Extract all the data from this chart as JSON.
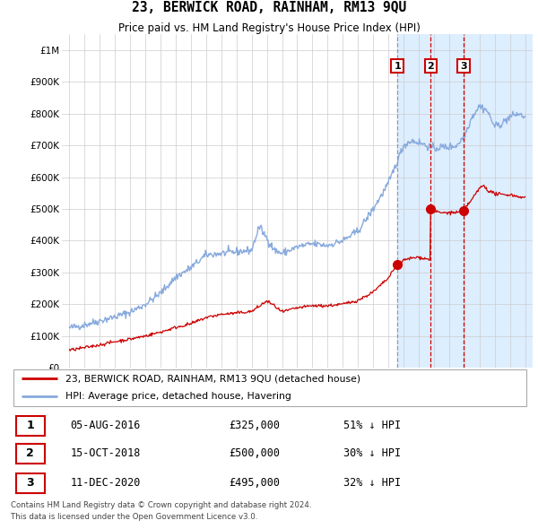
{
  "title": "23, BERWICK ROAD, RAINHAM, RM13 9QU",
  "subtitle": "Price paid vs. HM Land Registry's House Price Index (HPI)",
  "footer": "Contains HM Land Registry data © Crown copyright and database right 2024.\nThis data is licensed under the Open Government Licence v3.0.",
  "legend_red": "23, BERWICK ROAD, RAINHAM, RM13 9QU (detached house)",
  "legend_blue": "HPI: Average price, detached house, Havering",
  "transactions": [
    {
      "label": "1",
      "date": "05-AUG-2016",
      "price": 325000,
      "hpi_pct": "51% ↓ HPI",
      "x": 2016.59
    },
    {
      "label": "2",
      "date": "15-OCT-2018",
      "price": 500000,
      "hpi_pct": "30% ↓ HPI",
      "x": 2018.79
    },
    {
      "label": "3",
      "date": "11-DEC-2020",
      "price": 495000,
      "hpi_pct": "32% ↓ HPI",
      "x": 2020.95
    }
  ],
  "vline1_x": 2016.59,
  "vline2_x": 2018.79,
  "vline3_x": 2020.95,
  "shade_start": 2016.59,
  "shade_end": 2025.5,
  "red_color": "#cc0000",
  "blue_color": "#88aadd",
  "shade_color": "#ddeeff",
  "grid_color": "#cccccc",
  "ylim": [
    0,
    1050000
  ],
  "xlim": [
    1994.5,
    2025.5
  ],
  "hpi_anchors": [
    [
      1995.0,
      125000
    ],
    [
      1996.0,
      135000
    ],
    [
      1997.0,
      148000
    ],
    [
      1998.0,
      160000
    ],
    [
      1999.0,
      175000
    ],
    [
      2000.0,
      200000
    ],
    [
      2001.0,
      235000
    ],
    [
      2002.0,
      285000
    ],
    [
      2003.0,
      315000
    ],
    [
      2004.0,
      355000
    ],
    [
      2005.0,
      360000
    ],
    [
      2006.0,
      365000
    ],
    [
      2007.0,
      370000
    ],
    [
      2007.5,
      445000
    ],
    [
      2008.5,
      370000
    ],
    [
      2009.0,
      360000
    ],
    [
      2010.0,
      380000
    ],
    [
      2011.0,
      390000
    ],
    [
      2012.0,
      385000
    ],
    [
      2013.0,
      400000
    ],
    [
      2014.0,
      430000
    ],
    [
      2015.0,
      500000
    ],
    [
      2016.0,
      580000
    ],
    [
      2016.5,
      640000
    ],
    [
      2017.0,
      700000
    ],
    [
      2017.5,
      715000
    ],
    [
      2018.0,
      710000
    ],
    [
      2018.5,
      700000
    ],
    [
      2019.0,
      690000
    ],
    [
      2019.5,
      695000
    ],
    [
      2020.0,
      695000
    ],
    [
      2020.5,
      700000
    ],
    [
      2021.0,
      730000
    ],
    [
      2021.5,
      790000
    ],
    [
      2022.0,
      825000
    ],
    [
      2022.5,
      810000
    ],
    [
      2023.0,
      760000
    ],
    [
      2023.5,
      770000
    ],
    [
      2024.0,
      790000
    ],
    [
      2024.5,
      800000
    ],
    [
      2025.0,
      790000
    ]
  ],
  "red_anchors": [
    [
      1995.0,
      55000
    ],
    [
      1996.0,
      63000
    ],
    [
      1997.0,
      72000
    ],
    [
      1998.0,
      82000
    ],
    [
      1999.0,
      90000
    ],
    [
      2000.0,
      100000
    ],
    [
      2001.0,
      112000
    ],
    [
      2002.0,
      127000
    ],
    [
      2003.0,
      138000
    ],
    [
      2004.0,
      158000
    ],
    [
      2005.0,
      168000
    ],
    [
      2006.0,
      172000
    ],
    [
      2007.0,
      177000
    ],
    [
      2008.0,
      210000
    ],
    [
      2008.5,
      195000
    ],
    [
      2009.0,
      175000
    ],
    [
      2009.5,
      182000
    ],
    [
      2010.0,
      188000
    ],
    [
      2011.0,
      195000
    ],
    [
      2012.0,
      195000
    ],
    [
      2013.0,
      200000
    ],
    [
      2014.0,
      212000
    ],
    [
      2015.0,
      238000
    ],
    [
      2016.0,
      282000
    ],
    [
      2016.59,
      325000
    ],
    [
      2017.0,
      338000
    ],
    [
      2017.5,
      345000
    ],
    [
      2018.0,
      348000
    ],
    [
      2018.78,
      340000
    ],
    [
      2018.79,
      500000
    ],
    [
      2019.0,
      492000
    ],
    [
      2019.5,
      488000
    ],
    [
      2020.0,
      488000
    ],
    [
      2020.94,
      490000
    ],
    [
      2020.95,
      495000
    ],
    [
      2021.0,
      500000
    ],
    [
      2021.5,
      530000
    ],
    [
      2022.0,
      565000
    ],
    [
      2022.3,
      575000
    ],
    [
      2022.5,
      560000
    ],
    [
      2023.0,
      548000
    ],
    [
      2023.5,
      545000
    ],
    [
      2024.0,
      545000
    ],
    [
      2024.5,
      540000
    ],
    [
      2025.0,
      535000
    ]
  ]
}
